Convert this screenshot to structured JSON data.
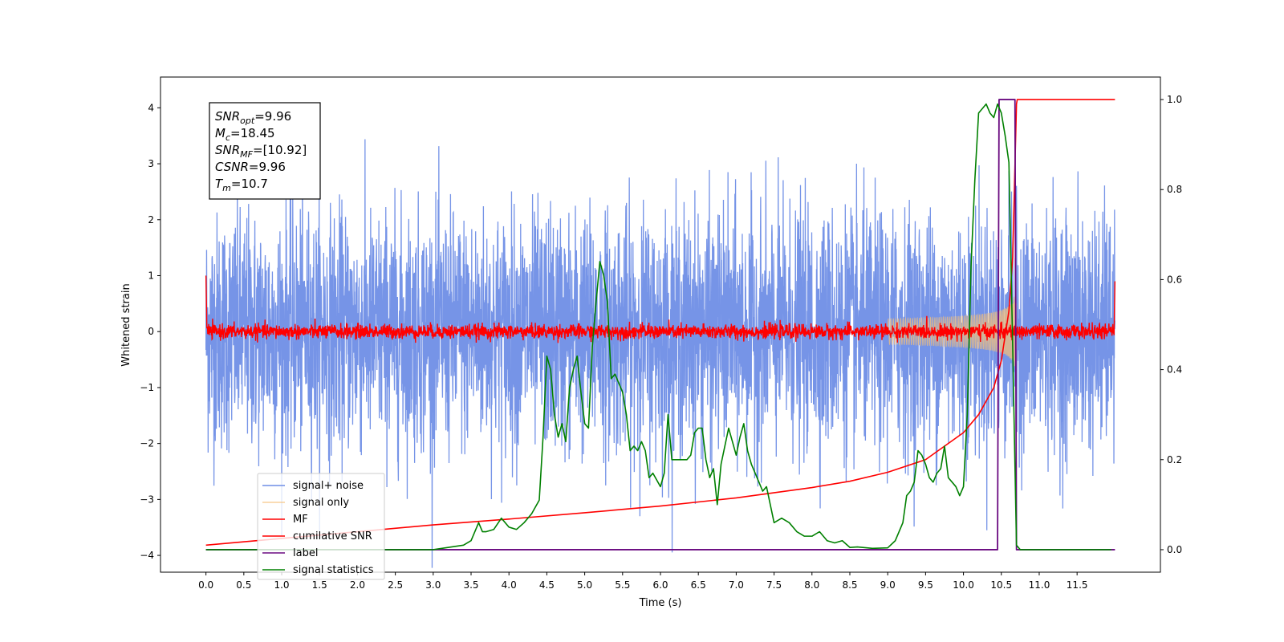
{
  "chart_data": {
    "type": "line",
    "xlabel": "Time (s)",
    "ylabel": "Whitened strain",
    "xlim": [
      -0.6,
      12.6
    ],
    "ylim": [
      -4.3,
      4.55
    ],
    "y2lim": [
      -0.05,
      1.05
    ],
    "x_ticks": [
      "0.0",
      "0.5",
      "1.0",
      "1.5",
      "2.0",
      "2.5",
      "3.0",
      "3.5",
      "4.0",
      "4.5",
      "5.0",
      "5.5",
      "6.0",
      "6.5",
      "7.0",
      "7.5",
      "8.0",
      "8.5",
      "9.0",
      "9.5",
      "10.0",
      "10.5",
      "11.0",
      "11.5"
    ],
    "y_ticks": [
      "4",
      "3",
      "2",
      "1",
      "0",
      "−1",
      "−2",
      "−3",
      "−4"
    ],
    "y2_ticks": [
      "1.0",
      "0.8",
      "0.6",
      "0.4",
      "0.2",
      "0.0"
    ],
    "legend_position": "lower-left",
    "annotation": {
      "lines": [
        {
          "main": "SNR",
          "sub": "opt",
          "rest": "=9.96"
        },
        {
          "main": "M",
          "sub": "c",
          "rest": "=18.45"
        },
        {
          "main": "SNR",
          "sub": "MF",
          "rest": "=[10.92]"
        },
        {
          "main": "CSNR",
          "sub": "",
          "rest": "=9.96"
        },
        {
          "main": "T",
          "sub": "m",
          "rest": "=10.7"
        }
      ]
    },
    "series": [
      {
        "name": "signal+ noise",
        "color": "#6f8ee6",
        "axis": "left",
        "kind": "noise",
        "std": 1.05,
        "range": [
          0.0,
          12.0
        ]
      },
      {
        "name": "signal only",
        "color": "#f5c07a",
        "axis": "left",
        "kind": "chirp",
        "tm": 10.7,
        "amp_max": 2.3
      },
      {
        "name": "MF",
        "color": "#ff0000",
        "axis": "left",
        "kind": "noise",
        "std": 0.065,
        "range": [
          0.0,
          12.0
        ]
      },
      {
        "name": "cumilative SNR",
        "color": "#ff0000",
        "axis": "right",
        "x": [
          0.0,
          1.0,
          2.0,
          3.0,
          4.0,
          5.0,
          6.0,
          7.0,
          8.0,
          8.5,
          9.0,
          9.5,
          10.0,
          10.2,
          10.4,
          10.5,
          10.6,
          10.65,
          10.7,
          10.71,
          12.0
        ],
        "values": [
          0.01,
          0.025,
          0.04,
          0.055,
          0.068,
          0.082,
          0.097,
          0.115,
          0.138,
          0.152,
          0.172,
          0.2,
          0.26,
          0.3,
          0.36,
          0.42,
          0.53,
          0.65,
          0.99,
          1.0,
          1.0
        ]
      },
      {
        "name": "label",
        "color": "#6a0a80",
        "axis": "right",
        "x": [
          0.0,
          10.45,
          10.47,
          10.68,
          10.7,
          12.0
        ],
        "values": [
          0.0,
          0.0,
          1.0,
          1.0,
          0.0,
          0.0
        ]
      },
      {
        "name": "signal statistics",
        "color": "#008000",
        "axis": "right",
        "x": [
          0.0,
          1.0,
          2.0,
          3.0,
          3.4,
          3.5,
          3.6,
          3.65,
          3.7,
          3.8,
          3.9,
          4.0,
          4.1,
          4.2,
          4.3,
          4.4,
          4.45,
          4.5,
          4.55,
          4.6,
          4.65,
          4.7,
          4.75,
          4.8,
          4.85,
          4.9,
          4.95,
          5.0,
          5.05,
          5.1,
          5.15,
          5.2,
          5.25,
          5.3,
          5.35,
          5.4,
          5.45,
          5.5,
          5.55,
          5.6,
          5.65,
          5.7,
          5.75,
          5.8,
          5.85,
          5.9,
          6.0,
          6.05,
          6.1,
          6.15,
          6.2,
          6.3,
          6.35,
          6.4,
          6.45,
          6.5,
          6.55,
          6.6,
          6.65,
          6.7,
          6.75,
          6.8,
          6.85,
          6.9,
          6.95,
          7.0,
          7.05,
          7.1,
          7.15,
          7.2,
          7.25,
          7.3,
          7.35,
          7.4,
          7.5,
          7.6,
          7.7,
          7.8,
          7.9,
          8.0,
          8.1,
          8.2,
          8.3,
          8.4,
          8.5,
          8.6,
          8.8,
          9.0,
          9.1,
          9.2,
          9.25,
          9.3,
          9.35,
          9.4,
          9.45,
          9.5,
          9.55,
          9.6,
          9.65,
          9.7,
          9.75,
          9.8,
          9.85,
          9.9,
          9.95,
          10.0,
          10.05,
          10.1,
          10.15,
          10.2,
          10.3,
          10.35,
          10.4,
          10.45,
          10.5,
          10.55,
          10.6,
          10.65,
          10.7,
          10.75,
          11.0,
          11.95
        ],
        "values": [
          0.0,
          0.0,
          0.0,
          0.0,
          0.01,
          0.02,
          0.06,
          0.04,
          0.04,
          0.045,
          0.07,
          0.05,
          0.045,
          0.06,
          0.08,
          0.11,
          0.25,
          0.43,
          0.4,
          0.3,
          0.25,
          0.28,
          0.24,
          0.36,
          0.4,
          0.43,
          0.35,
          0.28,
          0.27,
          0.45,
          0.55,
          0.64,
          0.61,
          0.55,
          0.38,
          0.39,
          0.37,
          0.35,
          0.3,
          0.22,
          0.23,
          0.22,
          0.24,
          0.22,
          0.16,
          0.17,
          0.14,
          0.17,
          0.3,
          0.2,
          0.2,
          0.2,
          0.2,
          0.21,
          0.26,
          0.27,
          0.27,
          0.2,
          0.16,
          0.18,
          0.1,
          0.19,
          0.23,
          0.27,
          0.24,
          0.21,
          0.25,
          0.28,
          0.22,
          0.19,
          0.17,
          0.15,
          0.13,
          0.14,
          0.06,
          0.07,
          0.06,
          0.04,
          0.03,
          0.03,
          0.04,
          0.02,
          0.015,
          0.02,
          0.005,
          0.006,
          0.003,
          0.004,
          0.02,
          0.06,
          0.12,
          0.13,
          0.15,
          0.22,
          0.21,
          0.19,
          0.16,
          0.15,
          0.17,
          0.18,
          0.23,
          0.16,
          0.15,
          0.14,
          0.12,
          0.14,
          0.3,
          0.63,
          0.82,
          0.97,
          0.99,
          0.97,
          0.96,
          0.99,
          0.97,
          0.92,
          0.86,
          0.45,
          0.01,
          0.0,
          0.0,
          0.0
        ]
      }
    ]
  }
}
